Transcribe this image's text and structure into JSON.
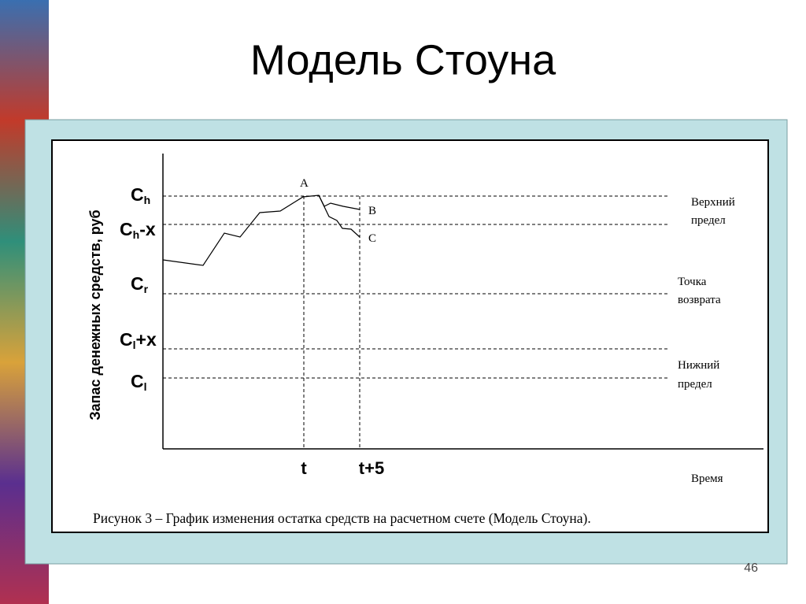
{
  "title": "Модель Стоуна",
  "diagram": {
    "y_axis_label": "Запас денежных средств, руб",
    "levels": [
      {
        "symbol": "C",
        "sub": "h"
      },
      {
        "symbol": "C",
        "sub": "h",
        "suffix": "-x"
      },
      {
        "symbol": "C",
        "sub": "r"
      },
      {
        "symbol": "C",
        "sub": "l",
        "suffix": "+x"
      },
      {
        "symbol": "C",
        "sub": "l"
      }
    ],
    "notes": [
      {
        "lines": [
          "Верхний",
          "предел"
        ]
      },
      {
        "lines": [
          "Точка",
          "возврата"
        ]
      },
      {
        "lines": [
          "Нижний",
          "предел"
        ]
      }
    ],
    "points": [
      "A",
      "B",
      "C"
    ],
    "x_ticks": [
      "t",
      "t+5"
    ],
    "x_axis_label": "Время",
    "caption": "Рисунок 3 – График изменения остатка средств на расчетном счете (Модель Стоуна)."
  },
  "page_number": "46"
}
